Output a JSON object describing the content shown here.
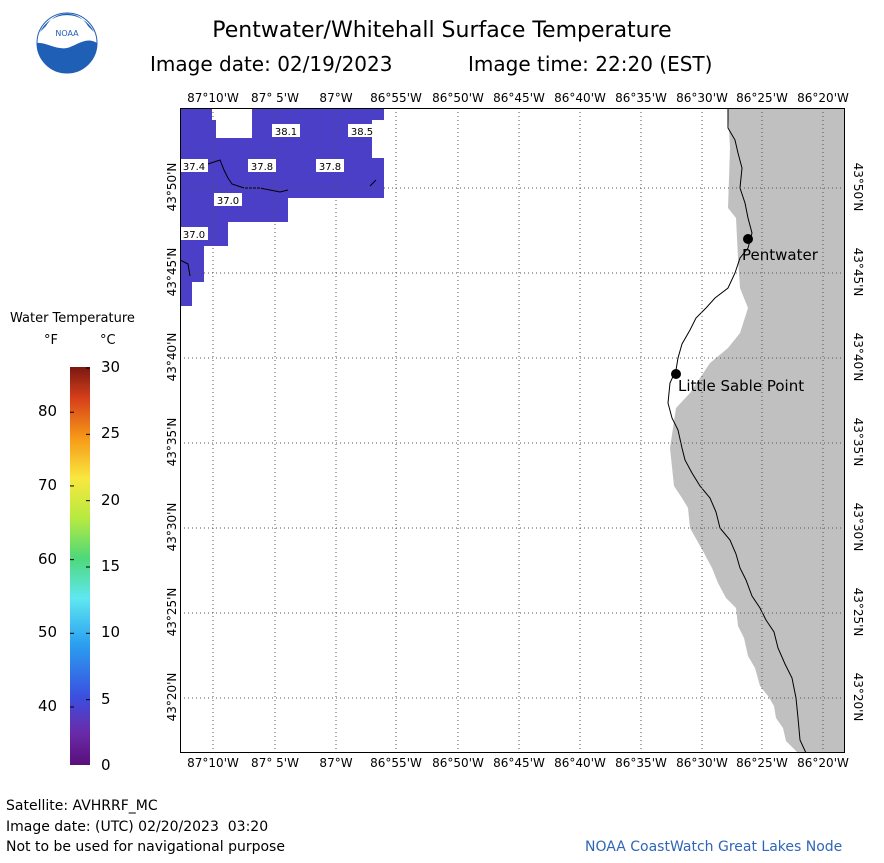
{
  "header": {
    "title": "Pentwater/Whitehall Surface Temperature",
    "image_date_label": "Image date: 02/19/2023",
    "image_time_label": "Image time: 22:20 (EST)"
  },
  "logo": {
    "text": "NOAA"
  },
  "map": {
    "lon_ticks": [
      "87°10'W",
      "87° 5'W",
      "87°W",
      "86°55'W",
      "86°50'W",
      "86°45'W",
      "86°40'W",
      "86°35'W",
      "86°30'W",
      "86°25'W",
      "86°20'W"
    ],
    "lat_ticks": [
      "43°50'N",
      "43°45'N",
      "43°40'N",
      "43°35'N",
      "43°30'N",
      "43°25'N",
      "43°20'N"
    ],
    "temperature_labels": [
      "38.1",
      "38.5",
      "37.4",
      "37.8",
      "37.8",
      "37.0",
      "37.0"
    ],
    "places": [
      {
        "name": "Pentwater"
      },
      {
        "name": "Little Sable Point"
      }
    ],
    "colors": {
      "water_temp": "#4b3fc8",
      "land": "#c0c0c0",
      "background": "#ffffff"
    }
  },
  "legend": {
    "title": "Water Temperature",
    "unit_f": "°F",
    "unit_c": "°C",
    "f_ticks": [
      "80",
      "70",
      "60",
      "50",
      "40"
    ],
    "c_ticks": [
      "30",
      "25",
      "20",
      "15",
      "10",
      "5",
      "0"
    ]
  },
  "footer": {
    "satellite": "Satellite: AVHRRF_MC",
    "utc_date": "Image date: (UTC) 02/20/2023  03:20",
    "disclaimer": "Not to be used for navigational purpose",
    "credit": "NOAA CoastWatch Great Lakes Node"
  }
}
